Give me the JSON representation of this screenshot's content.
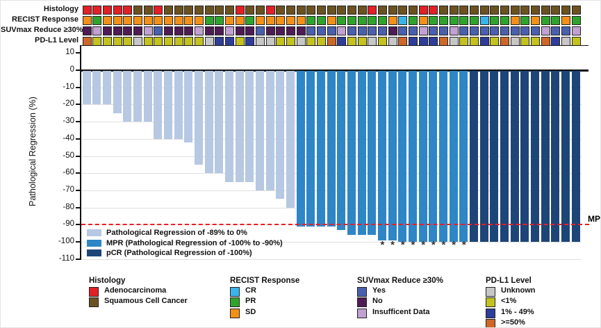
{
  "tracks": {
    "rows": [
      {
        "label": "Histology",
        "group": "histology",
        "cells": "AAAAASSASSSSSSSASSASSSSSSSSSASSSSAASSSSSSSSSSSSSS"
      },
      {
        "label": "RECIST Response",
        "group": "recist",
        "cells": "DPDDDDDDDDDDPPDDPDDDDDPPDPPPPPDCPDPPPPPCPPDPDPPDP"
      },
      {
        "label": "SUVmax Reduce ≥30%",
        "group": "suvmax",
        "cells": "NINNNNIYNNNINNINNYNNNNYYYIYYYYNYYIYYIYYYYYYYYIYYI"
      },
      {
        "label": "PD-L1 Level",
        "group": "pdl1",
        "cells": "HLLLLULLLLLLUMMLMUULLULLHMLLULUHMMMHULLMLHULLHMUL"
      }
    ]
  },
  "legend_groups": {
    "histology": {
      "title": "Histology",
      "items": [
        {
          "key": "A",
          "label": "Adenocarcinoma",
          "color": "#e22026"
        },
        {
          "key": "S",
          "label": "Squamous Cell Cancer",
          "color": "#6b5220"
        }
      ]
    },
    "recist": {
      "title": "RECIST Response",
      "items": [
        {
          "key": "C",
          "label": "CR",
          "color": "#3bb4e9"
        },
        {
          "key": "P",
          "label": "PR",
          "color": "#2fa42c"
        },
        {
          "key": "D",
          "label": "SD",
          "color": "#f29018"
        }
      ]
    },
    "suvmax": {
      "title": "SUVmax Reduce ≥30%",
      "items": [
        {
          "key": "Y",
          "label": "Yes",
          "color": "#4a60ae"
        },
        {
          "key": "N",
          "label": "No",
          "color": "#4e1b54"
        },
        {
          "key": "I",
          "label": "Insufficent Data",
          "color": "#c0a1d1"
        }
      ]
    },
    "pdl1": {
      "title": "PD-L1 Level",
      "items": [
        {
          "key": "U",
          "label": "Unknown",
          "color": "#c7c7c7"
        },
        {
          "key": "L",
          "label": "<1%",
          "color": "#c3c21e"
        },
        {
          "key": "M",
          "label": "1% - 49%",
          "color": "#2e3d9a"
        },
        {
          "key": "H",
          "label": ">=50%",
          "color": "#ce6728"
        }
      ]
    }
  },
  "chart_data": {
    "type": "bar",
    "subtype": "waterfall",
    "title": "",
    "xlabel": "",
    "ylabel": "Pathological Regression (%)",
    "ylim": [
      -110,
      10
    ],
    "yticks": [
      10,
      0,
      -10,
      -20,
      -30,
      -40,
      -50,
      -60,
      -70,
      -80,
      -90,
      -100,
      -110
    ],
    "n_bars": 49,
    "values": [
      -20,
      -20,
      -20,
      -25,
      -30,
      -30,
      -30,
      -40,
      -40,
      -40,
      -42,
      -55,
      -60,
      -60,
      -65,
      -65,
      -65,
      -70,
      -70,
      -75,
      -80,
      -91,
      -91,
      -91,
      -91,
      -93,
      -96,
      -96,
      -96,
      -99,
      -99,
      -100,
      -100,
      -100,
      -100,
      -100,
      -100,
      -100,
      -100,
      -100,
      -100,
      -100,
      -100,
      -100,
      -100,
      -100,
      -100,
      -100,
      -100
    ],
    "bar_categories": "rrrrrrrrrrrrrrrrrrrrrmmmmmmmmmmmmmmmmmppppppppppp",
    "palette": {
      "r": "#b6c8e2",
      "m": "#2e86c6",
      "p": "#1d4577"
    },
    "legend": [
      {
        "key": "r",
        "label": "Pathological Regression of -89% to 0%"
      },
      {
        "key": "m",
        "label": "MPR (Pathological Regression of -100% to -90%)"
      },
      {
        "key": "p",
        "label": "pCR (Pathological Regression of -100%)"
      }
    ],
    "reference_line": {
      "y": -90,
      "label": "MPR",
      "color": "#ed1c24",
      "style": "dashed"
    },
    "asterisk_bars": [
      30,
      31,
      32,
      33,
      34,
      35,
      36,
      37,
      38
    ],
    "asterisk_symbol": "*"
  }
}
